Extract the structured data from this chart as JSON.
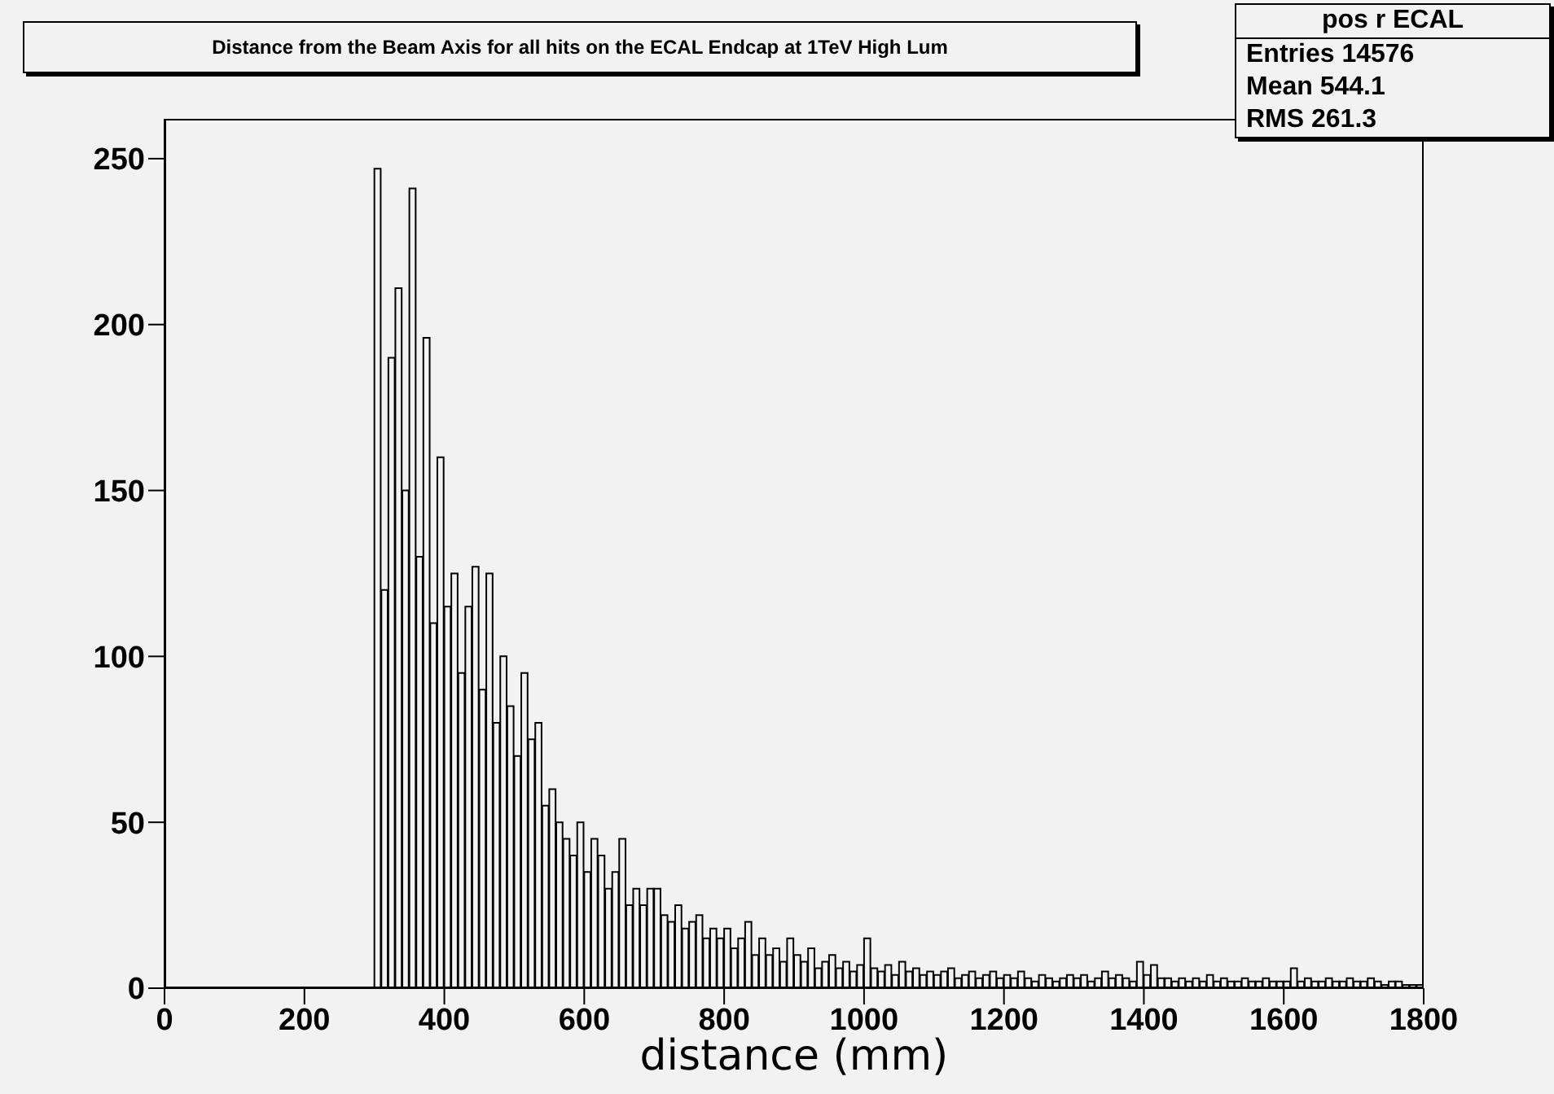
{
  "chart_data": {
    "type": "histogram",
    "title": "Distance from the Beam Axis for all hits on the ECAL Endcap at 1TeV High Lum",
    "xlabel": "distance (mm)",
    "annotations": [
      "pos r ECAL",
      "Entries 14576",
      "Mean 544.1",
      "RMS 261.3"
    ],
    "color": "#000000",
    "bins": [
      300,
      310,
      320,
      330,
      340,
      350,
      360,
      370,
      380,
      390,
      400,
      410,
      420,
      430,
      440,
      450,
      460,
      470,
      480,
      490,
      500,
      510,
      520,
      530,
      540,
      550,
      560,
      570,
      580,
      590,
      600,
      610,
      620,
      630,
      640,
      650,
      660,
      670,
      680,
      690,
      700,
      710,
      720,
      730,
      740,
      750,
      760,
      770,
      780,
      790,
      800,
      810,
      820,
      830,
      840,
      850,
      860,
      870,
      880,
      890,
      900,
      910,
      920,
      930,
      940,
      950,
      960,
      970,
      980,
      990,
      1000,
      1010,
      1020,
      1030,
      1040,
      1050,
      1060,
      1070,
      1080,
      1090,
      1100,
      1110,
      1120,
      1130,
      1140,
      1150,
      1160,
      1170,
      1180,
      1190,
      1200,
      1210,
      1220,
      1230,
      1240,
      1250,
      1260,
      1270,
      1280,
      1290,
      1300,
      1310,
      1320,
      1330,
      1340,
      1350,
      1360,
      1370,
      1380,
      1390,
      1400,
      1410,
      1420,
      1430,
      1440,
      1450,
      1460,
      1470,
      1480,
      1490,
      1500,
      1510,
      1520,
      1530,
      1540,
      1550,
      1560,
      1570,
      1580,
      1590,
      1600,
      1610,
      1620,
      1630,
      1640,
      1650,
      1660,
      1670,
      1680,
      1690,
      1700,
      1710,
      1720,
      1730,
      1740,
      1750,
      1760,
      1770,
      1780,
      1790,
      1800
    ],
    "values": [
      247,
      120,
      190,
      211,
      150,
      241,
      130,
      196,
      110,
      160,
      115,
      125,
      95,
      115,
      127,
      90,
      125,
      80,
      100,
      85,
      70,
      95,
      75,
      80,
      55,
      60,
      50,
      45,
      40,
      50,
      35,
      45,
      40,
      30,
      35,
      45,
      25,
      30,
      25,
      30,
      30,
      22,
      20,
      25,
      18,
      20,
      22,
      15,
      18,
      15,
      18,
      12,
      15,
      20,
      10,
      15,
      10,
      12,
      8,
      15,
      10,
      8,
      12,
      6,
      8,
      10,
      6,
      8,
      5,
      7,
      15,
      6,
      5,
      7,
      4,
      8,
      5,
      6,
      4,
      5,
      4,
      5,
      6,
      3,
      4,
      5,
      3,
      4,
      5,
      3,
      4,
      3,
      5,
      3,
      2,
      4,
      3,
      2,
      3,
      4,
      3,
      4,
      2,
      3,
      5,
      3,
      4,
      3,
      2,
      8,
      4,
      7,
      3,
      3,
      2,
      3,
      2,
      3,
      2,
      4,
      2,
      3,
      2,
      2,
      3,
      2,
      2,
      3,
      2,
      2,
      2,
      6,
      2,
      3,
      2,
      2,
      3,
      2,
      2,
      3,
      2,
      2,
      3,
      2,
      1,
      2,
      2,
      1,
      1,
      1
    ],
    "xlim": [
      0,
      1800
    ],
    "xticks": [
      0,
      200,
      400,
      600,
      800,
      1000,
      1200,
      1400,
      1600,
      1800
    ],
    "ylim": [
      0,
      262
    ],
    "yticks": [
      0,
      50,
      100,
      150,
      200,
      250
    ]
  }
}
